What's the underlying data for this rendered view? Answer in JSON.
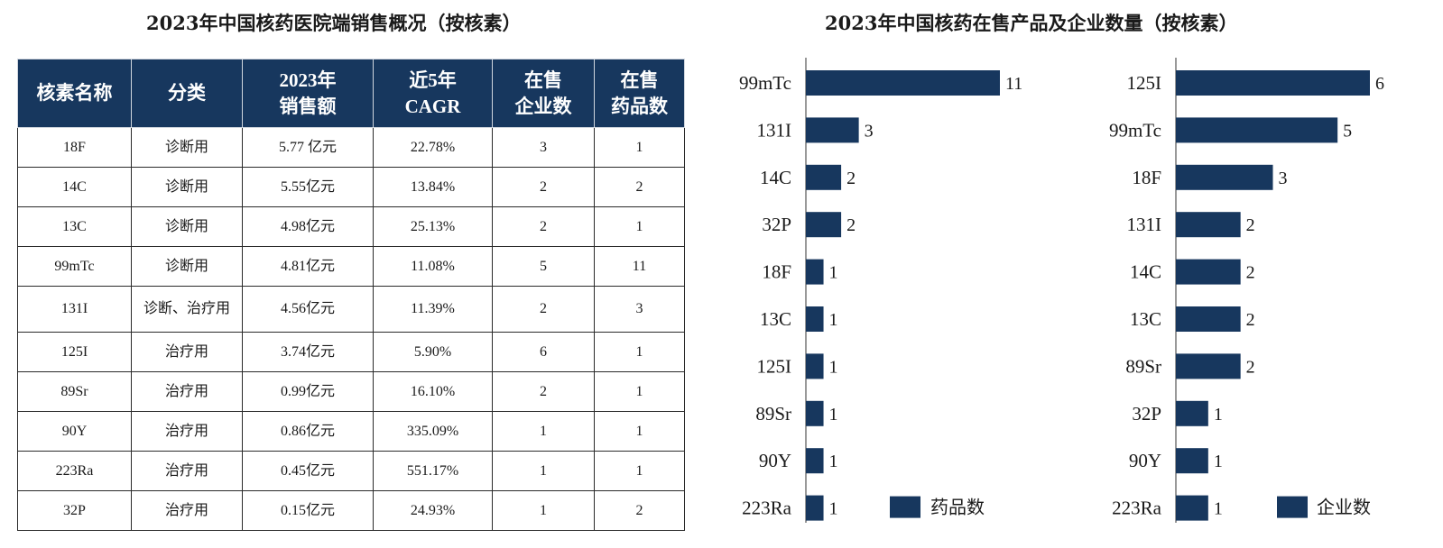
{
  "table": {
    "title": "2023年中国核药医院端销售概况（按核素）",
    "headers": [
      "核素名称",
      "分类",
      "2023年\n销售额",
      "近5年\nCAGR",
      "在售\n企业数",
      "在售\n药品数"
    ],
    "rows": [
      [
        "18F",
        "诊断用",
        "5.77 亿元",
        "22.78%",
        "3",
        "1"
      ],
      [
        "14C",
        "诊断用",
        "5.55亿元",
        "13.84%",
        "2",
        "2"
      ],
      [
        "13C",
        "诊断用",
        "4.98亿元",
        "25.13%",
        "2",
        "1"
      ],
      [
        "99mTc",
        "诊断用",
        "4.81亿元",
        "11.08%",
        "5",
        "11"
      ],
      [
        "131I",
        "诊断、治疗用",
        "4.56亿元",
        "11.39%",
        "2",
        "3"
      ],
      [
        "125I",
        "治疗用",
        "3.74亿元",
        "5.90%",
        "6",
        "1"
      ],
      [
        "89Sr",
        "治疗用",
        "0.99亿元",
        "16.10%",
        "2",
        "1"
      ],
      [
        "90Y",
        "治疗用",
        "0.86亿元",
        "335.09%",
        "1",
        "1"
      ],
      [
        "223Ra",
        "治疗用",
        "0.45亿元",
        "551.17%",
        "1",
        "1"
      ],
      [
        "32P",
        "治疗用",
        "0.15亿元",
        "24.93%",
        "1",
        "2"
      ]
    ]
  },
  "chart_data": [
    {
      "type": "bar",
      "orientation": "horizontal",
      "title": "2023年中国核药在售产品及企业数量（按核素）",
      "categories": [
        "99mTc",
        "131I",
        "14C",
        "32P",
        "18F",
        "13C",
        "125I",
        "89Sr",
        "90Y",
        "223Ra"
      ],
      "series": [
        {
          "name": "药品数",
          "values": [
            11,
            3,
            2,
            2,
            1,
            1,
            1,
            1,
            1,
            1
          ]
        }
      ],
      "legend": "bottom-right",
      "color": "#17375e"
    },
    {
      "type": "bar",
      "orientation": "horizontal",
      "categories": [
        "125I",
        "99mTc",
        "18F",
        "131I",
        "14C",
        "13C",
        "89Sr",
        "32P",
        "90Y",
        "223Ra"
      ],
      "series": [
        {
          "name": "企业数",
          "values": [
            6,
            5,
            3,
            2,
            2,
            2,
            2,
            1,
            1,
            1
          ]
        }
      ],
      "legend": "bottom-right",
      "color": "#17375e"
    }
  ]
}
